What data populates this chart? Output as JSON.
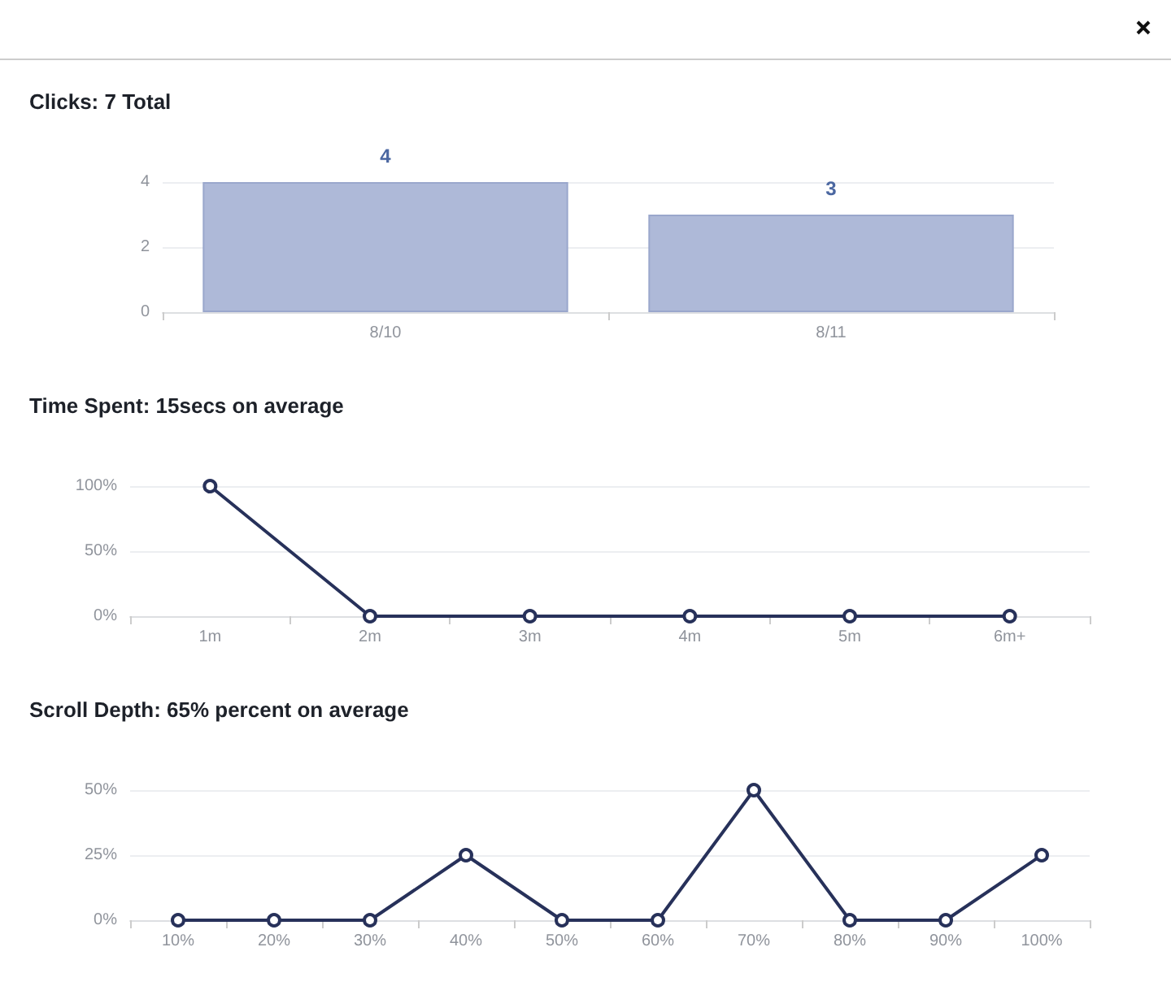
{
  "chart_data": [
    {
      "type": "bar",
      "title": "Clicks: 7 Total",
      "categories": [
        "8/10",
        "8/11"
      ],
      "values": [
        4,
        3
      ],
      "color": "#aeb9d8",
      "ylim": [
        0,
        4
      ],
      "yticks": [
        0,
        2,
        4
      ],
      "grid": "y",
      "data_labels": true
    },
    {
      "type": "line",
      "title": "Time Spent: 15secs on average",
      "categories": [
        "1m",
        "2m",
        "3m",
        "4m",
        "5m",
        "6m+"
      ],
      "values": [
        100,
        0,
        0,
        0,
        0,
        0
      ],
      "color": "#27315a",
      "ylim": [
        0,
        100
      ],
      "yticks": [
        {
          "value": 0,
          "label": "0%"
        },
        {
          "value": 50,
          "label": "50%"
        },
        {
          "value": 100,
          "label": "100%"
        }
      ],
      "grid": "y",
      "marker": "circle",
      "line_style": "solid"
    },
    {
      "type": "line",
      "title": "Scroll Depth: 65% percent on average",
      "categories": [
        "10%",
        "20%",
        "30%",
        "40%",
        "50%",
        "60%",
        "70%",
        "80%",
        "90%",
        "100%"
      ],
      "values": [
        0,
        0,
        0,
        25,
        0,
        0,
        50,
        0,
        0,
        25
      ],
      "color": "#27315a",
      "ylim": [
        0,
        50
      ],
      "yticks": [
        {
          "value": 0,
          "label": "0%"
        },
        {
          "value": 25,
          "label": "25%"
        },
        {
          "value": 50,
          "label": "50%"
        }
      ],
      "grid": "y",
      "marker": "circle",
      "line_style": "solid"
    }
  ]
}
